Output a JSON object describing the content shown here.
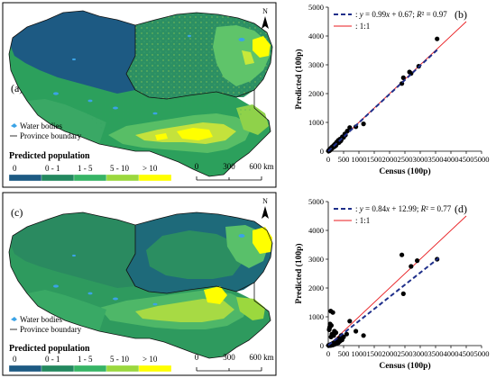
{
  "panels": [
    {
      "label": "(a)",
      "legend": {
        "water_label": "Water bodies",
        "boundary_label": "Province boundary",
        "title": "Predicted population",
        "classes": [
          "0",
          "0 - 1",
          "1 - 5",
          "5 - 10",
          "> 10"
        ],
        "colors": [
          "#1d5a83",
          "#23885f",
          "#37b466",
          "#9bd83e",
          "#ffff00"
        ]
      },
      "north": "N",
      "scale": {
        "ticks": [
          "0",
          "300",
          "600 km"
        ]
      }
    },
    {
      "label": "(c)",
      "legend": {
        "water_label": "Water bodies",
        "boundary_label": "Province boundary",
        "title": "Predicted population",
        "classes": [
          "0",
          "0 - 1",
          "1 - 5",
          "5 - 10",
          "> 10"
        ],
        "colors": [
          "#1d5a83",
          "#23885f",
          "#37b466",
          "#9bd83e",
          "#ffff00"
        ]
      },
      "north": "N",
      "scale": {
        "ticks": [
          "0",
          "300",
          "600 km"
        ]
      }
    }
  ],
  "chart_data": [
    {
      "type": "scatter",
      "label": "(b)",
      "xlabel": "Census (100p)",
      "ylabel": "Predicted (100p)",
      "xlim": [
        0,
        5000
      ],
      "ylim": [
        0,
        5000
      ],
      "xticks": [
        "0",
        "500",
        "1000",
        "1500",
        "2000",
        "2500",
        "3000",
        "3500",
        "4000",
        "4500",
        "5000"
      ],
      "yticks": [
        "0",
        "1000",
        "2000",
        "3000",
        "4000",
        "5000"
      ],
      "fit": {
        "slope": 0.99,
        "intercept": 0.67,
        "x_range": [
          0,
          3600
        ]
      },
      "legend": [
        {
          "label_parts": [
            "y",
            " = 0.99",
            "x",
            " + 0.67; ",
            "R",
            "² = 0.97"
          ],
          "style": "dashed",
          "color": "#1f2f8a"
        },
        {
          "label_parts": [
            "1:1"
          ],
          "style": "solid",
          "color": "#e8191d"
        }
      ],
      "points": [
        [
          3550,
          3900
        ],
        [
          2950,
          2950
        ],
        [
          2700,
          2700
        ],
        [
          2650,
          2750
        ],
        [
          2450,
          2550
        ],
        [
          2400,
          2350
        ],
        [
          1150,
          950
        ],
        [
          900,
          850
        ],
        [
          700,
          820
        ],
        [
          620,
          700
        ],
        [
          560,
          560
        ],
        [
          540,
          600
        ],
        [
          500,
          480
        ],
        [
          460,
          500
        ],
        [
          420,
          380
        ],
        [
          400,
          350
        ],
        [
          380,
          420
        ],
        [
          350,
          300
        ],
        [
          330,
          380
        ],
        [
          300,
          280
        ],
        [
          280,
          320
        ],
        [
          260,
          240
        ],
        [
          250,
          200
        ],
        [
          230,
          260
        ],
        [
          220,
          180
        ],
        [
          200,
          220
        ],
        [
          190,
          150
        ],
        [
          180,
          200
        ],
        [
          160,
          170
        ],
        [
          150,
          130
        ],
        [
          140,
          160
        ],
        [
          130,
          110
        ],
        [
          120,
          140
        ],
        [
          110,
          90
        ],
        [
          100,
          120
        ],
        [
          95,
          70
        ],
        [
          90,
          100
        ],
        [
          80,
          60
        ],
        [
          75,
          90
        ],
        [
          70,
          50
        ],
        [
          65,
          80
        ],
        [
          60,
          40
        ],
        [
          55,
          70
        ],
        [
          50,
          30
        ],
        [
          45,
          55
        ],
        [
          40,
          20
        ],
        [
          35,
          45
        ],
        [
          30,
          15
        ],
        [
          25,
          35
        ],
        [
          20,
          10
        ],
        [
          15,
          25
        ],
        [
          10,
          5
        ]
      ]
    },
    {
      "type": "scatter",
      "label": "(d)",
      "xlabel": "Census (100p)",
      "ylabel": "Predicted (100p)",
      "xlim": [
        0,
        5000
      ],
      "ylim": [
        0,
        5000
      ],
      "xticks": [
        "0",
        "500",
        "1000",
        "1500",
        "2000",
        "2500",
        "3000",
        "3500",
        "4000",
        "4500",
        "5000"
      ],
      "yticks": [
        "0",
        "1000",
        "2000",
        "3000",
        "4000",
        "5000"
      ],
      "fit": {
        "slope": 0.84,
        "intercept": 12.99,
        "x_range": [
          0,
          3600
        ]
      },
      "legend": [
        {
          "label_parts": [
            "y",
            " = 0.84",
            "x",
            " + 12.99; ",
            "R",
            "² = 0.77"
          ],
          "style": "dashed",
          "color": "#1f2f8a"
        },
        {
          "label_parts": [
            "1:1"
          ],
          "style": "solid",
          "color": "#e8191d"
        }
      ],
      "points": [
        [
          2400,
          3150
        ],
        [
          3550,
          3000
        ],
        [
          2900,
          2950
        ],
        [
          2700,
          2750
        ],
        [
          2450,
          1800
        ],
        [
          80,
          1200
        ],
        [
          150,
          1150
        ],
        [
          60,
          750
        ],
        [
          100,
          700
        ],
        [
          50,
          650
        ],
        [
          40,
          600
        ],
        [
          30,
          550
        ],
        [
          700,
          850
        ],
        [
          900,
          500
        ],
        [
          1150,
          350
        ],
        [
          600,
          400
        ],
        [
          500,
          300
        ],
        [
          450,
          200
        ],
        [
          420,
          350
        ],
        [
          380,
          150
        ],
        [
          350,
          250
        ],
        [
          330,
          100
        ],
        [
          300,
          200
        ],
        [
          280,
          80
        ],
        [
          260,
          150
        ],
        [
          240,
          60
        ],
        [
          220,
          120
        ],
        [
          200,
          40
        ],
        [
          180,
          100
        ],
        [
          160,
          30
        ],
        [
          150,
          80
        ],
        [
          140,
          20
        ],
        [
          120,
          60
        ],
        [
          110,
          15
        ],
        [
          100,
          50
        ],
        [
          90,
          10
        ],
        [
          80,
          40
        ],
        [
          70,
          8
        ],
        [
          60,
          30
        ],
        [
          50,
          5
        ],
        [
          40,
          20
        ],
        [
          30,
          3
        ],
        [
          20,
          15
        ],
        [
          15,
          2
        ],
        [
          10,
          10
        ],
        [
          200,
          500
        ],
        [
          250,
          450
        ],
        [
          120,
          400
        ],
        [
          180,
          350
        ],
        [
          90,
          300
        ]
      ]
    }
  ]
}
